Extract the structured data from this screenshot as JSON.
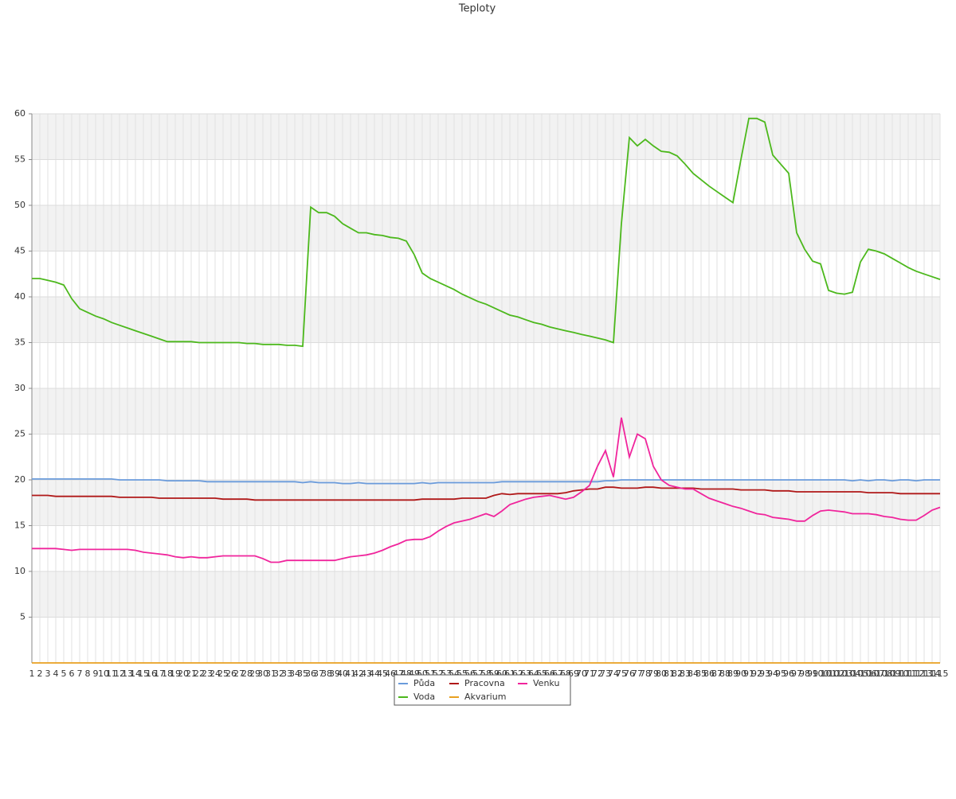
{
  "chart_data": {
    "type": "line",
    "title": "Teploty",
    "categories": [
      1,
      2,
      3,
      4,
      5,
      6,
      7,
      8,
      9,
      10,
      11,
      12,
      13,
      14,
      15,
      16,
      17,
      18,
      19,
      20,
      21,
      22,
      23,
      24,
      25,
      26,
      27,
      28,
      29,
      30,
      31,
      32,
      33,
      34,
      35,
      36,
      37,
      38,
      39,
      40,
      41,
      42,
      43,
      44,
      45,
      46,
      47,
      48,
      49,
      50,
      51,
      52,
      53,
      54,
      55,
      56,
      57,
      58,
      59,
      60,
      61,
      62,
      63,
      64,
      65,
      66,
      67,
      68,
      69,
      70,
      71,
      72,
      73,
      74,
      75,
      76,
      77,
      78,
      79,
      80,
      81,
      82,
      83,
      84,
      85,
      86,
      87,
      88,
      89,
      90,
      91,
      92,
      93,
      94,
      95,
      96,
      97,
      98,
      99,
      100,
      101,
      102,
      103,
      104,
      105,
      106,
      107,
      108,
      109,
      110,
      111,
      112,
      113,
      114,
      115
    ],
    "series": [
      {
        "name": "Půda",
        "color": "#6a9bdb",
        "values": [
          20.1,
          20.1,
          20.1,
          20.1,
          20.1,
          20.1,
          20.1,
          20.1,
          20.1,
          20.1,
          20.1,
          20.0,
          20.0,
          20.0,
          20.0,
          20.0,
          20.0,
          19.9,
          19.9,
          19.9,
          19.9,
          19.9,
          19.8,
          19.8,
          19.8,
          19.8,
          19.8,
          19.8,
          19.8,
          19.8,
          19.8,
          19.8,
          19.8,
          19.8,
          19.7,
          19.8,
          19.7,
          19.7,
          19.7,
          19.6,
          19.6,
          19.7,
          19.6,
          19.6,
          19.6,
          19.6,
          19.6,
          19.6,
          19.6,
          19.7,
          19.6,
          19.7,
          19.7,
          19.7,
          19.7,
          19.7,
          19.7,
          19.7,
          19.7,
          19.8,
          19.8,
          19.8,
          19.8,
          19.8,
          19.8,
          19.8,
          19.8,
          19.8,
          19.8,
          19.8,
          19.8,
          19.8,
          19.9,
          19.9,
          20.0,
          20.0,
          20.0,
          20.0,
          20.0,
          20.0,
          20.0,
          20.0,
          20.0,
          20.0,
          20.0,
          20.0,
          20.0,
          20.0,
          20.0,
          20.0,
          20.0,
          20.0,
          20.0,
          20.0,
          20.0,
          20.0,
          20.0,
          20.0,
          20.0,
          20.0,
          20.0,
          20.0,
          20.0,
          19.9,
          20.0,
          19.9,
          20.0,
          20.0,
          19.9,
          20.0,
          20.0,
          19.9,
          20.0,
          20.0,
          20.0
        ]
      },
      {
        "name": "Voda",
        "color": "#4cb81c",
        "values": [
          42.0,
          42.0,
          41.8,
          41.6,
          41.3,
          39.8,
          38.7,
          38.3,
          37.9,
          37.6,
          37.2,
          36.9,
          36.6,
          36.3,
          36.0,
          35.7,
          35.4,
          35.1,
          35.1,
          35.1,
          35.1,
          35.0,
          35.0,
          35.0,
          35.0,
          35.0,
          35.0,
          34.9,
          34.9,
          34.8,
          34.8,
          34.8,
          34.7,
          34.7,
          34.6,
          49.8,
          49.2,
          49.2,
          48.8,
          48.0,
          47.5,
          47.0,
          47.0,
          46.8,
          46.7,
          46.5,
          46.4,
          46.1,
          44.6,
          42.6,
          42.0,
          41.6,
          41.2,
          40.8,
          40.3,
          39.9,
          39.5,
          39.2,
          38.8,
          38.4,
          38.0,
          37.8,
          37.5,
          37.2,
          37.0,
          36.7,
          36.5,
          36.3,
          36.1,
          35.9,
          35.7,
          35.5,
          35.3,
          35.0,
          48.0,
          57.4,
          56.5,
          57.2,
          56.5,
          55.9,
          55.8,
          55.4,
          54.5,
          53.5,
          52.8,
          52.1,
          51.5,
          50.9,
          50.3,
          55.0,
          59.5,
          59.5,
          59.1,
          55.5,
          54.5,
          53.5,
          47.0,
          45.2,
          43.9,
          43.6,
          40.7,
          40.4,
          40.3,
          40.5,
          43.8,
          45.2,
          45.0,
          44.7,
          44.2,
          43.7,
          43.2,
          42.8,
          42.5,
          42.2,
          41.9
        ]
      },
      {
        "name": "Pracovna",
        "color": "#b01818",
        "values": [
          18.3,
          18.3,
          18.3,
          18.2,
          18.2,
          18.2,
          18.2,
          18.2,
          18.2,
          18.2,
          18.2,
          18.1,
          18.1,
          18.1,
          18.1,
          18.1,
          18.0,
          18.0,
          18.0,
          18.0,
          18.0,
          18.0,
          18.0,
          18.0,
          17.9,
          17.9,
          17.9,
          17.9,
          17.8,
          17.8,
          17.8,
          17.8,
          17.8,
          17.8,
          17.8,
          17.8,
          17.8,
          17.8,
          17.8,
          17.8,
          17.8,
          17.8,
          17.8,
          17.8,
          17.8,
          17.8,
          17.8,
          17.8,
          17.8,
          17.9,
          17.9,
          17.9,
          17.9,
          17.9,
          18.0,
          18.0,
          18.0,
          18.0,
          18.3,
          18.5,
          18.4,
          18.5,
          18.5,
          18.5,
          18.5,
          18.5,
          18.5,
          18.6,
          18.8,
          18.9,
          19.0,
          19.0,
          19.2,
          19.2,
          19.1,
          19.1,
          19.1,
          19.2,
          19.2,
          19.1,
          19.1,
          19.1,
          19.1,
          19.1,
          19.0,
          19.0,
          19.0,
          19.0,
          19.0,
          18.9,
          18.9,
          18.9,
          18.9,
          18.8,
          18.8,
          18.8,
          18.7,
          18.7,
          18.7,
          18.7,
          18.7,
          18.7,
          18.7,
          18.7,
          18.7,
          18.6,
          18.6,
          18.6,
          18.6,
          18.5,
          18.5,
          18.5,
          18.5,
          18.5,
          18.5
        ]
      },
      {
        "name": "Akvarium",
        "color": "#e8a020",
        "values": [
          0,
          0,
          0,
          0,
          0,
          0,
          0,
          0,
          0,
          0,
          0,
          0,
          0,
          0,
          0,
          0,
          0,
          0,
          0,
          0,
          0,
          0,
          0,
          0,
          0,
          0,
          0,
          0,
          0,
          0,
          0,
          0,
          0,
          0,
          0,
          0,
          0,
          0,
          0,
          0,
          0,
          0,
          0,
          0,
          0,
          0,
          0,
          0,
          0,
          0,
          0,
          0,
          0,
          0,
          0,
          0,
          0,
          0,
          0,
          0,
          0,
          0,
          0,
          0,
          0,
          0,
          0,
          0,
          0,
          0,
          0,
          0,
          0,
          0,
          0,
          0,
          0,
          0,
          0,
          0,
          0,
          0,
          0,
          0,
          0,
          0,
          0,
          0,
          0,
          0,
          0,
          0,
          0,
          0,
          0,
          0,
          0,
          0,
          0,
          0,
          0,
          0,
          0,
          0,
          0,
          0,
          0,
          0,
          0,
          0,
          0,
          0,
          0,
          0,
          0
        ]
      },
      {
        "name": "Venku",
        "color": "#f0259c",
        "values": [
          12.5,
          12.5,
          12.5,
          12.5,
          12.4,
          12.3,
          12.4,
          12.4,
          12.4,
          12.4,
          12.4,
          12.4,
          12.4,
          12.3,
          12.1,
          12.0,
          11.9,
          11.8,
          11.6,
          11.5,
          11.6,
          11.5,
          11.5,
          11.6,
          11.7,
          11.7,
          11.7,
          11.7,
          11.7,
          11.4,
          11.0,
          11.0,
          11.2,
          11.2,
          11.2,
          11.2,
          11.2,
          11.2,
          11.2,
          11.4,
          11.6,
          11.7,
          11.8,
          12.0,
          12.3,
          12.7,
          13.0,
          13.4,
          13.5,
          13.5,
          13.8,
          14.4,
          14.9,
          15.3,
          15.5,
          15.7,
          16.0,
          16.3,
          16.0,
          16.6,
          17.3,
          17.6,
          17.9,
          18.1,
          18.2,
          18.3,
          18.1,
          17.9,
          18.1,
          18.7,
          19.4,
          21.5,
          23.2,
          20.3,
          26.8,
          22.5,
          25.0,
          24.5,
          21.5,
          20.0,
          19.4,
          19.2,
          19.0,
          19.0,
          18.5,
          18.0,
          17.7,
          17.4,
          17.1,
          16.9,
          16.6,
          16.3,
          16.2,
          15.9,
          15.8,
          15.7,
          15.5,
          15.5,
          16.1,
          16.6,
          16.7,
          16.6,
          16.5,
          16.3,
          16.3,
          16.3,
          16.2,
          16.0,
          15.9,
          15.7,
          15.6,
          15.6,
          16.1,
          16.7,
          17.0
        ]
      }
    ],
    "ylim": [
      0,
      60
    ],
    "yticks": [
      5,
      10,
      15,
      20,
      25,
      30,
      35,
      40,
      45,
      50,
      55,
      60
    ],
    "grid": true
  }
}
